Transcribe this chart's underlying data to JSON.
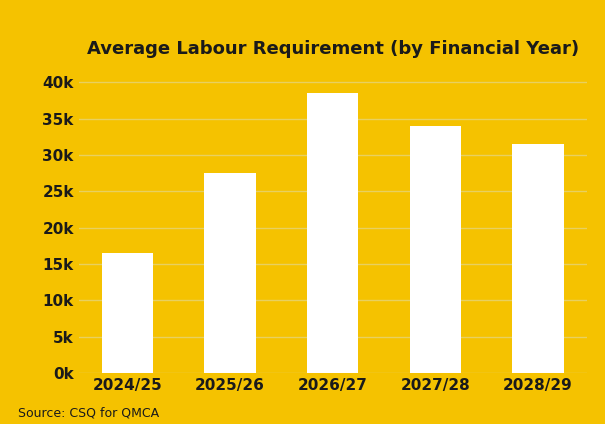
{
  "title": "Average Labour Requirement (by Financial Year)",
  "categories": [
    "2024/25",
    "2025/26",
    "2026/27",
    "2027/28",
    "2028/29"
  ],
  "values": [
    16500,
    27500,
    38500,
    34000,
    31500
  ],
  "bar_color": "#ffffff",
  "background_color": "#F5C200",
  "title_fontsize": 13,
  "tick_label_fontsize": 11,
  "source_text": "Source: CSQ for QMCA",
  "source_fontsize": 9,
  "ylim": [
    0,
    42000
  ],
  "yticks": [
    0,
    5000,
    10000,
    15000,
    20000,
    25000,
    30000,
    35000,
    40000
  ],
  "grid_color": "#E8D060",
  "bar_edge_color": "none",
  "text_color": "#1a1a1a",
  "bar_width": 0.5
}
